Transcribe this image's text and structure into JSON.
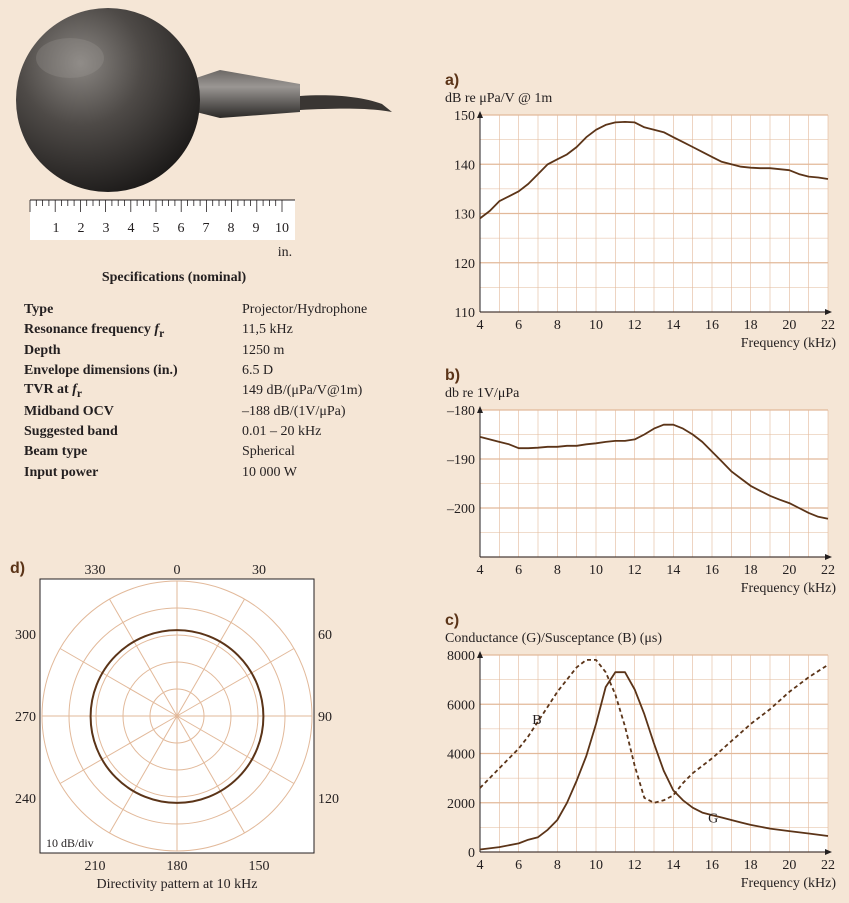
{
  "image_panel": {
    "ruler_ticks": [
      "1",
      "2",
      "3",
      "4",
      "5",
      "6",
      "7",
      "8",
      "9",
      "10"
    ],
    "ruler_unit": "in."
  },
  "specs": {
    "title": "Specifications (nominal)",
    "rows": [
      {
        "key": "Type",
        "value": "Projector/Hydrophone"
      },
      {
        "key": "Resonance frequency",
        "key_sym": "f",
        "key_sub": "r",
        "value": "11,5 kHz"
      },
      {
        "key": "Depth",
        "value": "1250 m"
      },
      {
        "key": "Envelope dimensions (in.)",
        "value": "6.5 D"
      },
      {
        "key": "TVR at",
        "key_sym": "f",
        "key_sub": "r",
        "value": "149 dB/(μPa/V@1m)"
      },
      {
        "key": "Midband OCV",
        "value": "–188 dB/(1V/μPa)"
      },
      {
        "key": "Suggested band",
        "value": "0.01 – 20 kHz"
      },
      {
        "key": "Beam type",
        "value": "Spherical"
      },
      {
        "key": "Input power",
        "value": "10 000 W"
      }
    ]
  },
  "colors": {
    "background": "#f5e6d6",
    "curve": "#5b3418",
    "grid": "#e2b99a",
    "accent": "#5b3418"
  },
  "chart_data": [
    {
      "panel": "a)",
      "type": "line",
      "ylabel": "dB re μPa/V @ 1m",
      "xlabel": "Frequency (kHz)",
      "xlim": [
        4,
        22
      ],
      "ylim": [
        110,
        150
      ],
      "xticks": [
        "4",
        "6",
        "8",
        "10",
        "12",
        "14",
        "16",
        "18",
        "20",
        "22"
      ],
      "yticks": [
        "110",
        "120",
        "130",
        "140",
        "150"
      ],
      "series": [
        {
          "style": "solid",
          "x": [
            4,
            4.5,
            5,
            5.5,
            6,
            6.5,
            7,
            7.5,
            8,
            8.5,
            9,
            9.5,
            10,
            10.5,
            11,
            11.5,
            12,
            12.5,
            13,
            13.5,
            14,
            14.5,
            15,
            15.5,
            16,
            16.5,
            17,
            17.5,
            18,
            18.5,
            19,
            19.5,
            20,
            20.5,
            21,
            21.5,
            22
          ],
          "y": [
            129,
            130.5,
            132.5,
            133.5,
            134.5,
            136,
            138,
            140,
            141,
            142,
            143.5,
            145.5,
            147,
            148,
            148.5,
            148.6,
            148.5,
            147.5,
            147,
            146.5,
            145.5,
            144.5,
            143.5,
            142.5,
            141.5,
            140.5,
            140,
            139.5,
            139.3,
            139.2,
            139.2,
            139,
            138.8,
            138,
            137.5,
            137.3,
            137
          ]
        }
      ]
    },
    {
      "panel": "b)",
      "type": "line",
      "ylabel": "db re 1V/μPa",
      "xlabel": "Frequency (kHz)",
      "xlim": [
        4,
        22
      ],
      "ylim": [
        -210,
        -180
      ],
      "xticks": [
        "4",
        "6",
        "8",
        "10",
        "12",
        "14",
        "16",
        "18",
        "20",
        "22"
      ],
      "yticks": [
        "–180",
        "–190",
        "–200"
      ],
      "series": [
        {
          "style": "solid",
          "x": [
            4,
            4.5,
            5,
            5.5,
            6,
            6.5,
            7,
            7.5,
            8,
            8.5,
            9,
            9.5,
            10,
            10.5,
            11,
            11.5,
            12,
            12.5,
            13,
            13.5,
            14,
            14.5,
            15,
            15.5,
            16,
            16.5,
            17,
            17.5,
            18,
            18.5,
            19,
            19.5,
            20,
            20.5,
            21,
            21.5,
            22
          ],
          "y": [
            -185.5,
            -186,
            -186.5,
            -187,
            -187.8,
            -187.8,
            -187.7,
            -187.5,
            -187.5,
            -187.3,
            -187.3,
            -187,
            -186.8,
            -186.5,
            -186.3,
            -186.3,
            -186,
            -185,
            -183.8,
            -183,
            -183,
            -183.8,
            -185,
            -186.5,
            -188.5,
            -190.5,
            -192.5,
            -194,
            -195.5,
            -196.5,
            -197.5,
            -198.3,
            -199,
            -200,
            -201,
            -201.8,
            -202.2
          ]
        }
      ]
    },
    {
      "panel": "c)",
      "type": "line",
      "ylabel": "Conductance (G)/Susceptance (B) (μs)",
      "xlabel": "Frequency (kHz)",
      "xlim": [
        4,
        22
      ],
      "ylim": [
        0,
        8000
      ],
      "xticks": [
        "4",
        "6",
        "8",
        "10",
        "12",
        "14",
        "16",
        "18",
        "20",
        "22"
      ],
      "yticks": [
        "0",
        "2000",
        "4000",
        "6000",
        "8000"
      ],
      "series": [
        {
          "name": "G",
          "style": "solid",
          "x": [
            4,
            5,
            6,
            6.5,
            7,
            7.5,
            8,
            8.5,
            9,
            9.5,
            10,
            10.5,
            11,
            11.5,
            12,
            12.5,
            13,
            13.5,
            14,
            14.5,
            15,
            15.5,
            16,
            16.5,
            17,
            17.5,
            18,
            19,
            20,
            21,
            22
          ],
          "y": [
            100,
            200,
            350,
            500,
            600,
            900,
            1300,
            2000,
            2900,
            3900,
            5200,
            6700,
            7300,
            7300,
            6600,
            5600,
            4400,
            3300,
            2500,
            2100,
            1800,
            1600,
            1500,
            1400,
            1300,
            1200,
            1100,
            950,
            850,
            750,
            650
          ]
        },
        {
          "name": "B",
          "style": "dashed",
          "x": [
            4,
            4.5,
            5,
            5.5,
            6,
            6.5,
            7,
            7.5,
            8,
            8.5,
            9,
            9.5,
            10,
            10.5,
            11,
            11.5,
            12,
            12.5,
            13,
            13.5,
            14,
            14.5,
            15,
            16,
            17,
            18,
            19,
            20,
            21,
            22
          ],
          "y": [
            2600,
            3000,
            3400,
            3800,
            4200,
            4700,
            5300,
            5900,
            6500,
            7000,
            7500,
            7800,
            7800,
            7300,
            6400,
            5100,
            3500,
            2200,
            2000,
            2100,
            2300,
            2800,
            3200,
            3800,
            4500,
            5200,
            5800,
            6500,
            7100,
            7600
          ]
        }
      ]
    },
    {
      "panel": "d)",
      "type": "polar",
      "title": "Directivity pattern at 10 kHz",
      "scale_label": "10 dB/div",
      "angle_labels": [
        "0",
        "30",
        "60",
        "90",
        "120",
        "150",
        "180",
        "210",
        "240",
        "270",
        "300",
        "330"
      ],
      "rings": 5,
      "pattern_rings": 3.2
    }
  ]
}
